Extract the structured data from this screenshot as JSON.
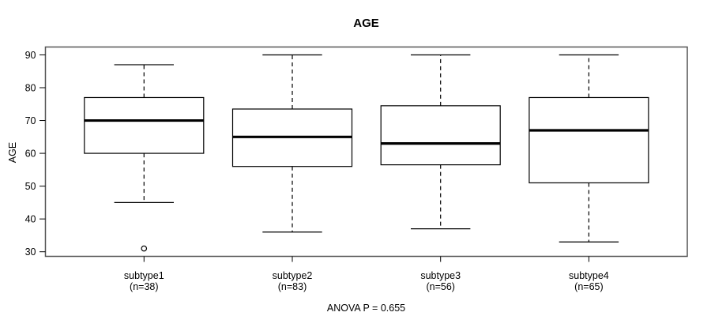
{
  "chart_data": {
    "type": "boxplot",
    "title": "AGE",
    "ylabel": "AGE",
    "annotation": "ANOVA P = 0.655",
    "yticks": [
      30,
      40,
      50,
      60,
      70,
      80,
      90
    ],
    "ylim": [
      28.6,
      92.4
    ],
    "grid": false,
    "groups": [
      {
        "label": "subtype1",
        "sublabel": "(n=38)",
        "low": 45,
        "q1": 60,
        "median": 70,
        "q3": 77,
        "high": 87,
        "outliers": [
          31
        ]
      },
      {
        "label": "subtype2",
        "sublabel": "(n=83)",
        "low": 36,
        "q1": 56,
        "median": 65,
        "q3": 73.5,
        "high": 90,
        "outliers": []
      },
      {
        "label": "subtype3",
        "sublabel": "(n=56)",
        "low": 37,
        "q1": 56.5,
        "median": 63,
        "q3": 74.5,
        "high": 90,
        "outliers": []
      },
      {
        "label": "subtype4",
        "sublabel": "(n=65)",
        "low": 33,
        "q1": 51,
        "median": 67,
        "q3": 77,
        "high": 90,
        "outliers": []
      }
    ],
    "colors": {
      "line": "#000000",
      "plot_border": "#555555",
      "background": "#ffffff"
    }
  }
}
